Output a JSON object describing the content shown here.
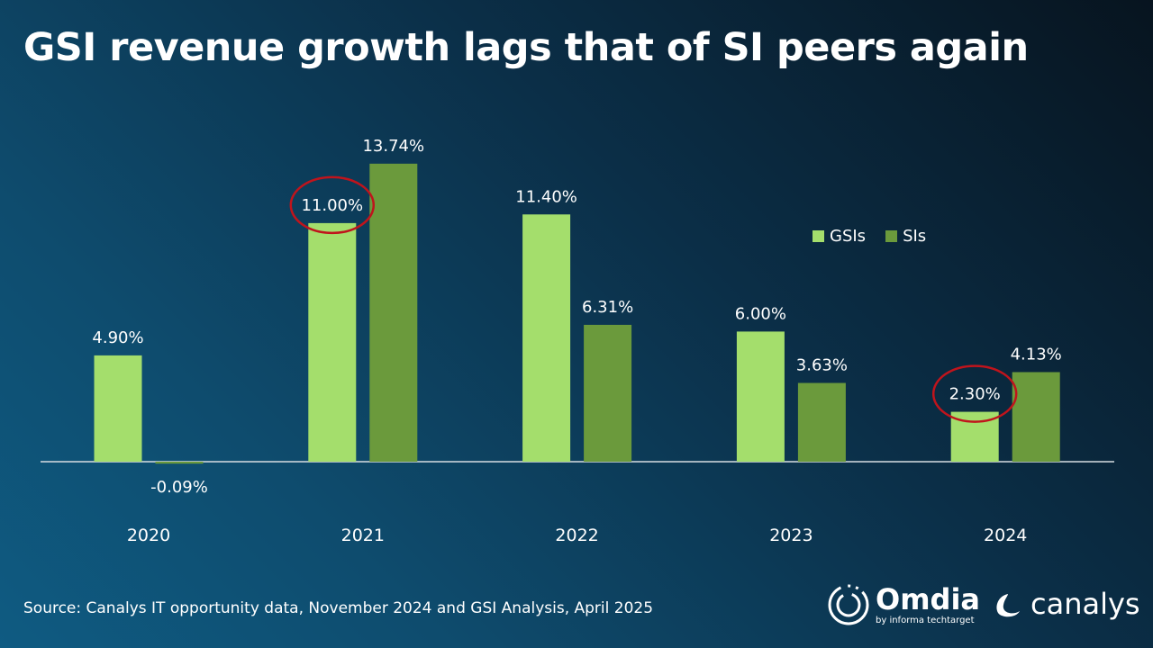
{
  "title": "GSI revenue growth lags that of SI peers again",
  "source": "Source: Canalys IT opportunity data, November 2024 and GSI Analysis, April 2025",
  "logos": {
    "omdia": "Omdia",
    "omdia_sub": "by informa techtarget",
    "canalys": "canalys"
  },
  "colors": {
    "gsi": "#a4de6c",
    "si": "#6b9a3c",
    "highlight": "#c0141c",
    "axis": "#d8dde2"
  },
  "chart_data": {
    "type": "bar",
    "title": "GSI revenue growth lags that of SI peers again",
    "categories": [
      "2020",
      "2021",
      "2022",
      "2023",
      "2024"
    ],
    "series": [
      {
        "name": "GSIs",
        "values": [
          4.9,
          11.0,
          11.4,
          6.0,
          2.3
        ],
        "labels": [
          "4.90%",
          "11.00%",
          "11.40%",
          "6.00%",
          "2.30%"
        ]
      },
      {
        "name": "SIs",
        "values": [
          -0.09,
          13.74,
          6.31,
          3.63,
          4.13
        ],
        "labels": [
          "-0.09%",
          "13.74%",
          "6.31%",
          "3.63%",
          "4.13%"
        ]
      }
    ],
    "legend": "top-right",
    "annotations": [
      "circle around 2021 GSIs 11.00%",
      "circle around 2024 GSIs 2.30%"
    ],
    "highlighted": [
      {
        "series": 0,
        "category": 1
      },
      {
        "series": 0,
        "category": 4
      }
    ],
    "ylim": [
      -1,
      15
    ],
    "grid": false,
    "xlabel": "",
    "ylabel": ""
  }
}
